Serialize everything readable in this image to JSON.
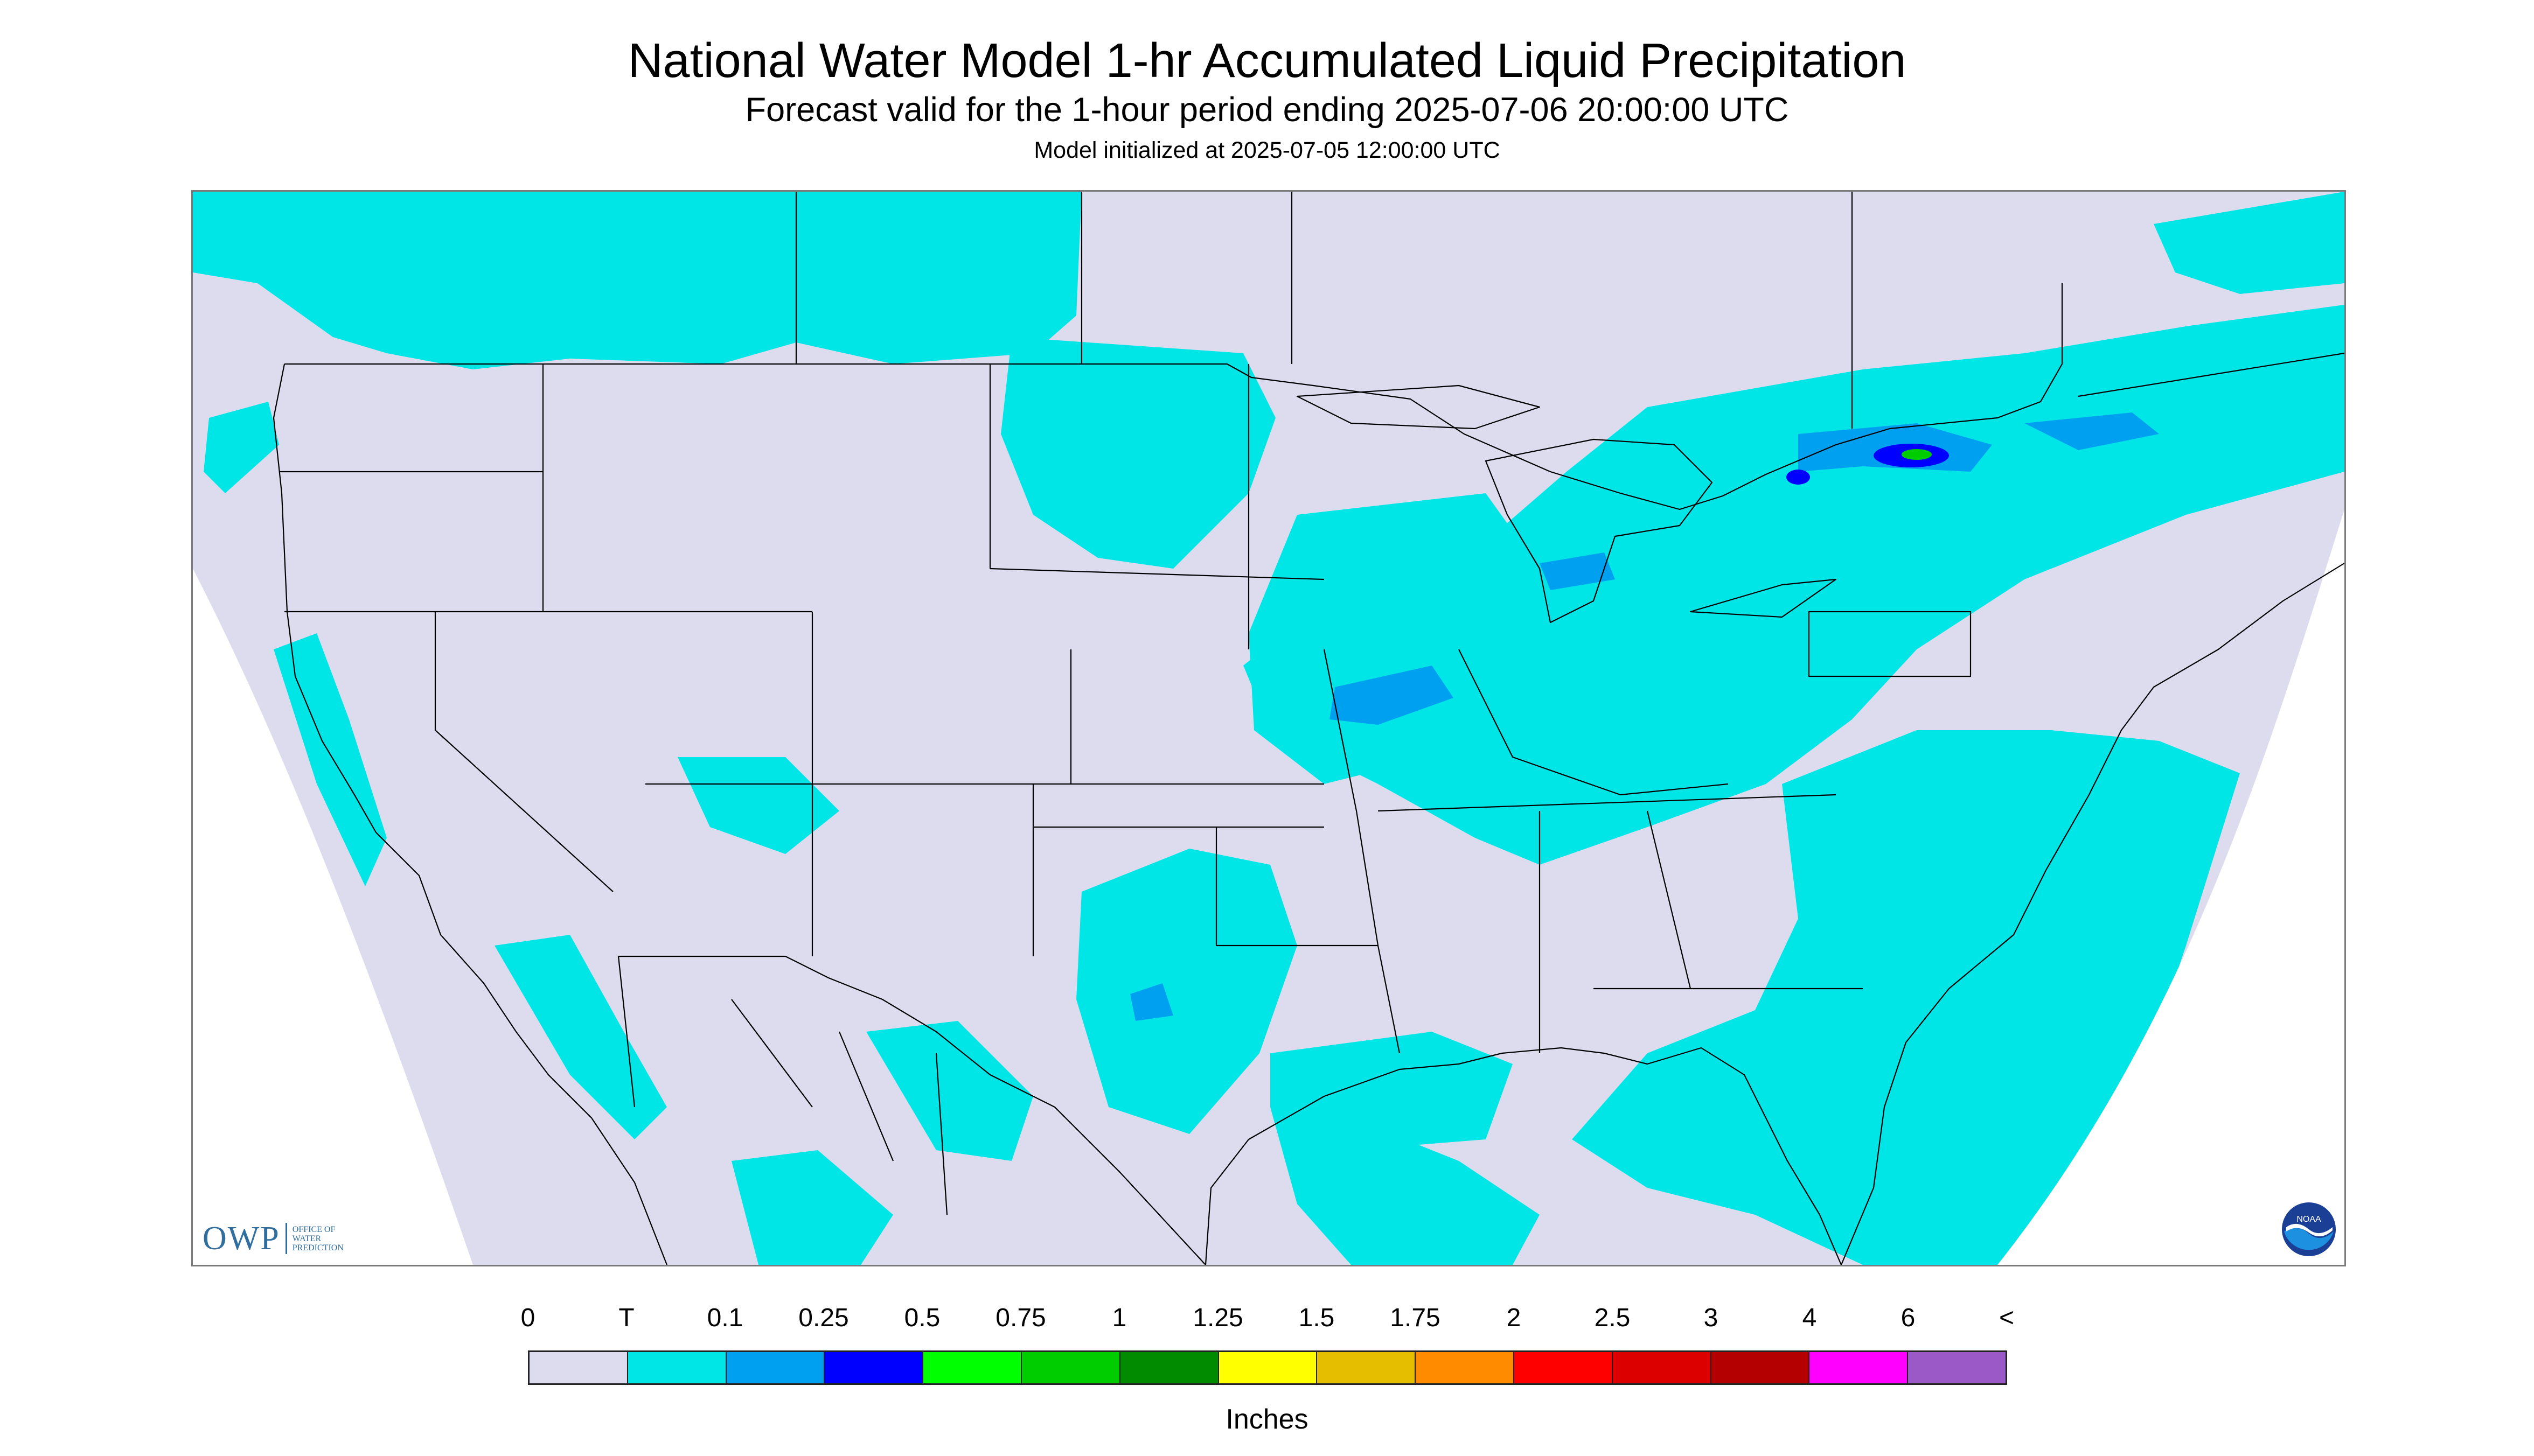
{
  "header": {
    "title": "National Water Model 1-hr Accumulated Liquid Precipitation",
    "subtitle": "Forecast valid for the 1-hour period ending 2025-07-06 20:00:00 UTC",
    "init_note": "Model initialized at 2025-07-05 12:00:00 UTC"
  },
  "map": {
    "background_color": "#dcdcee",
    "outside_projection_color": "#ffffff",
    "boundary_color": "#000000"
  },
  "logos": {
    "owp_mark": "OWP",
    "owp_text_lines": [
      "OFFICE OF",
      "WATER",
      "PREDICTION"
    ],
    "noaa_text": "NOAA"
  },
  "legend": {
    "units": "Inches",
    "tick_labels": [
      "0",
      "T",
      "0.1",
      "0.25",
      "0.5",
      "0.75",
      "1",
      "1.25",
      "1.5",
      "1.75",
      "2",
      "2.5",
      "3",
      "4",
      "6",
      "<"
    ],
    "colors": [
      "#dcdcee",
      "#00e6e6",
      "#00a0f0",
      "#0000ff",
      "#00ff00",
      "#00cd00",
      "#008b00",
      "#ffff00",
      "#e6be00",
      "#ff8c00",
      "#ff0000",
      "#dc0000",
      "#b40000",
      "#ff00ff",
      "#9b59c8"
    ]
  }
}
